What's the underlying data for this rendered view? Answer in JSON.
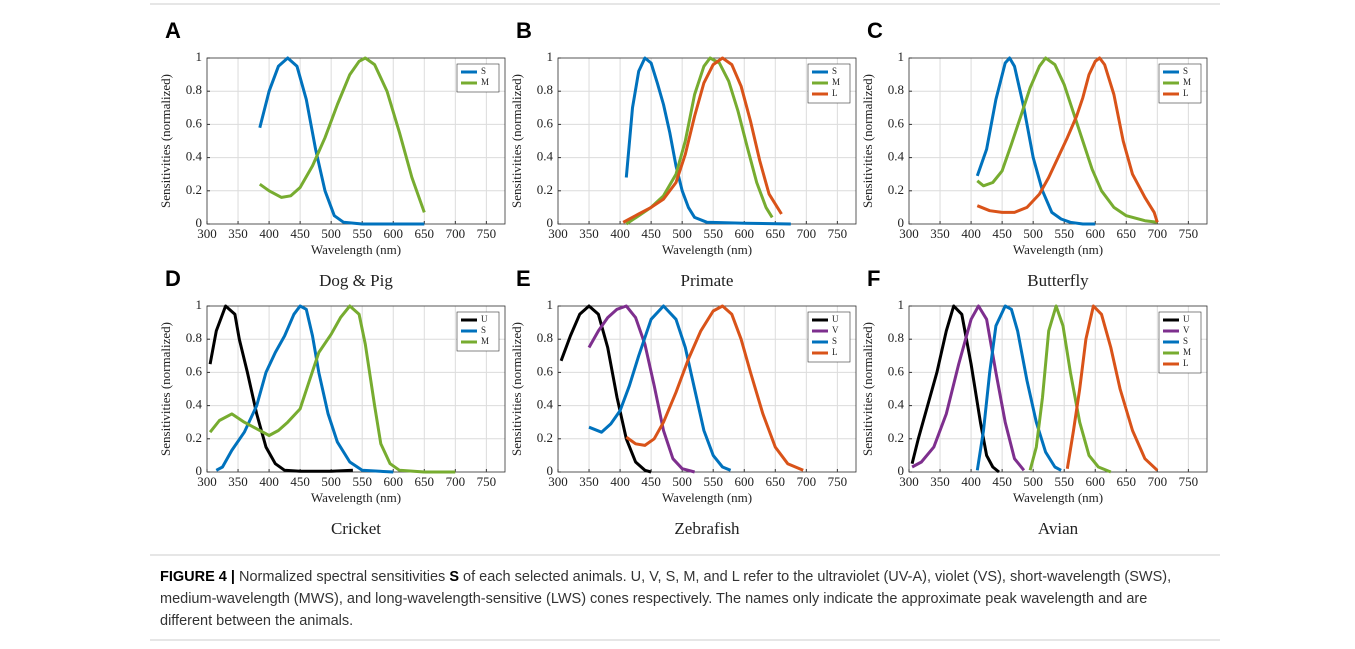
{
  "chart_data": [
    {
      "type": "line",
      "panel": "A",
      "title": "Dog & Pig",
      "xlabel": "Wavelength (nm)",
      "ylabel": "Sensitivities (normalized)",
      "xlim": [
        300,
        780
      ],
      "xticks": [
        300,
        350,
        400,
        450,
        500,
        550,
        600,
        650,
        700,
        750
      ],
      "ylim": [
        0,
        1
      ],
      "yticks": [
        0,
        0.2,
        0.4,
        0.6,
        0.8,
        1
      ],
      "grid": true,
      "legend": "upper right",
      "series": [
        {
          "name": "S",
          "color": "#0072bd",
          "x": [
            385,
            400,
            415,
            430,
            445,
            460,
            475,
            490,
            505,
            520,
            550,
            600,
            650
          ],
          "values": [
            0.58,
            0.8,
            0.95,
            1,
            0.95,
            0.75,
            0.45,
            0.2,
            0.05,
            0.01,
            0,
            0,
            0
          ]
        },
        {
          "name": "M",
          "color": "#77ac30",
          "x": [
            385,
            400,
            420,
            435,
            450,
            470,
            490,
            510,
            530,
            545,
            555,
            570,
            590,
            610,
            630,
            650
          ],
          "values": [
            0.24,
            0.2,
            0.16,
            0.17,
            0.22,
            0.35,
            0.52,
            0.72,
            0.9,
            0.98,
            1,
            0.96,
            0.8,
            0.55,
            0.28,
            0.07
          ]
        }
      ]
    },
    {
      "type": "line",
      "panel": "B",
      "title": "Primate",
      "xlabel": "Wavelength (nm)",
      "ylabel": "Sensitivities (normalized)",
      "xlim": [
        300,
        780
      ],
      "xticks": [
        300,
        350,
        400,
        450,
        500,
        550,
        600,
        650,
        700,
        750
      ],
      "ylim": [
        0,
        1
      ],
      "yticks": [
        0,
        0.2,
        0.4,
        0.6,
        0.8,
        1
      ],
      "grid": true,
      "legend": "upper right",
      "series": [
        {
          "name": "S",
          "color": "#0072bd",
          "x": [
            410,
            420,
            430,
            440,
            450,
            460,
            470,
            480,
            490,
            500,
            510,
            520,
            540,
            600,
            675
          ],
          "values": [
            0.28,
            0.7,
            0.92,
            1,
            0.97,
            0.85,
            0.72,
            0.55,
            0.35,
            0.2,
            0.1,
            0.04,
            0.01,
            0.005,
            0
          ]
        },
        {
          "name": "M",
          "color": "#77ac30",
          "x": [
            410,
            430,
            450,
            470,
            490,
            505,
            520,
            535,
            545,
            560,
            575,
            590,
            605,
            620,
            635,
            645
          ],
          "values": [
            0,
            0.05,
            0.1,
            0.17,
            0.3,
            0.5,
            0.78,
            0.95,
            1,
            0.97,
            0.86,
            0.68,
            0.46,
            0.25,
            0.1,
            0.04
          ]
        },
        {
          "name": "L",
          "color": "#d95319",
          "x": [
            405,
            430,
            450,
            470,
            490,
            505,
            520,
            535,
            550,
            565,
            580,
            595,
            610,
            625,
            640,
            660
          ],
          "values": [
            0.01,
            0.06,
            0.1,
            0.15,
            0.25,
            0.42,
            0.65,
            0.85,
            0.96,
            1,
            0.96,
            0.83,
            0.62,
            0.38,
            0.18,
            0.06
          ]
        }
      ]
    },
    {
      "type": "line",
      "panel": "C",
      "title": "Butterfly",
      "xlabel": "Wavelength (nm)",
      "ylabel": "Sensitivities (normalized)",
      "xlim": [
        300,
        780
      ],
      "xticks": [
        300,
        350,
        400,
        450,
        500,
        550,
        600,
        650,
        700,
        750
      ],
      "ylim": [
        0,
        1
      ],
      "yticks": [
        0,
        0.2,
        0.4,
        0.6,
        0.8,
        1
      ],
      "grid": true,
      "legend": "upper right",
      "series": [
        {
          "name": "S",
          "color": "#0072bd",
          "x": [
            410,
            425,
            440,
            455,
            462,
            470,
            485,
            500,
            515,
            530,
            545,
            560,
            580,
            600
          ],
          "values": [
            0.29,
            0.45,
            0.75,
            0.97,
            1,
            0.95,
            0.7,
            0.4,
            0.2,
            0.07,
            0.03,
            0.01,
            0,
            0
          ]
        },
        {
          "name": "M",
          "color": "#77ac30",
          "x": [
            410,
            420,
            435,
            450,
            465,
            480,
            495,
            510,
            520,
            535,
            550,
            565,
            580,
            595,
            610,
            630,
            650,
            680,
            700
          ],
          "values": [
            0.26,
            0.23,
            0.25,
            0.32,
            0.48,
            0.65,
            0.82,
            0.95,
            1,
            0.96,
            0.84,
            0.67,
            0.5,
            0.33,
            0.2,
            0.1,
            0.05,
            0.02,
            0.01
          ]
        },
        {
          "name": "L",
          "color": "#d95319",
          "x": [
            410,
            430,
            450,
            470,
            490,
            510,
            525,
            540,
            555,
            570,
            580,
            590,
            600,
            607,
            615,
            630,
            645,
            660,
            680,
            695,
            700
          ],
          "values": [
            0.11,
            0.08,
            0.07,
            0.07,
            0.1,
            0.18,
            0.28,
            0.4,
            0.52,
            0.65,
            0.76,
            0.9,
            0.98,
            1,
            0.96,
            0.78,
            0.5,
            0.3,
            0.16,
            0.07,
            0.01
          ]
        }
      ]
    },
    {
      "type": "line",
      "panel": "D",
      "title": "Cricket",
      "xlabel": "Wavelength (nm)",
      "ylabel": "Sensitivities (normalized)",
      "xlim": [
        300,
        780
      ],
      "xticks": [
        300,
        350,
        400,
        450,
        500,
        550,
        600,
        650,
        700,
        750
      ],
      "ylim": [
        0,
        1
      ],
      "yticks": [
        0,
        0.2,
        0.4,
        0.6,
        0.8,
        1
      ],
      "grid": true,
      "legend": "upper right",
      "series": [
        {
          "name": "U",
          "color": "#000000",
          "x": [
            305,
            315,
            330,
            345,
            352,
            365,
            380,
            395,
            410,
            425,
            450,
            500,
            535
          ],
          "values": [
            0.65,
            0.85,
            1,
            0.95,
            0.8,
            0.6,
            0.35,
            0.15,
            0.05,
            0.01,
            0.005,
            0.005,
            0.01
          ]
        },
        {
          "name": "S",
          "color": "#0072bd",
          "x": [
            315,
            325,
            340,
            360,
            380,
            395,
            410,
            425,
            440,
            450,
            460,
            470,
            480,
            495,
            510,
            530,
            550,
            600
          ],
          "values": [
            0.01,
            0.03,
            0.13,
            0.24,
            0.4,
            0.6,
            0.72,
            0.82,
            0.95,
            1,
            0.98,
            0.82,
            0.6,
            0.35,
            0.18,
            0.06,
            0.01,
            0
          ]
        },
        {
          "name": "M",
          "color": "#77ac30",
          "x": [
            305,
            320,
            340,
            360,
            380,
            400,
            415,
            430,
            450,
            465,
            480,
            500,
            515,
            530,
            545,
            555,
            570,
            580,
            595,
            610,
            650,
            700
          ],
          "values": [
            0.24,
            0.31,
            0.35,
            0.3,
            0.26,
            0.22,
            0.25,
            0.3,
            0.38,
            0.55,
            0.72,
            0.83,
            0.93,
            1,
            0.95,
            0.77,
            0.4,
            0.17,
            0.05,
            0.01,
            0,
            0
          ]
        }
      ]
    },
    {
      "type": "line",
      "panel": "E",
      "title": "Zebrafish",
      "xlabel": "Wavelength (nm)",
      "ylabel": "Sensitivities (normalized)",
      "xlim": [
        300,
        780
      ],
      "xticks": [
        300,
        350,
        400,
        450,
        500,
        550,
        600,
        650,
        700,
        750
      ],
      "ylim": [
        0,
        1
      ],
      "yticks": [
        0,
        0.2,
        0.4,
        0.6,
        0.8,
        1
      ],
      "grid": true,
      "legend": "upper right",
      "series": [
        {
          "name": "U",
          "color": "#000000",
          "x": [
            305,
            320,
            335,
            350,
            365,
            380,
            395,
            410,
            425,
            440,
            450
          ],
          "values": [
            0.67,
            0.82,
            0.95,
            1,
            0.95,
            0.75,
            0.45,
            0.2,
            0.06,
            0.01,
            0
          ]
        },
        {
          "name": "V",
          "color": "#7e2f8e",
          "x": [
            350,
            365,
            380,
            395,
            410,
            425,
            440,
            455,
            470,
            485,
            500,
            520
          ],
          "values": [
            0.75,
            0.85,
            0.93,
            0.98,
            1,
            0.93,
            0.77,
            0.52,
            0.25,
            0.08,
            0.02,
            0
          ]
        },
        {
          "name": "S",
          "color": "#0072bd",
          "x": [
            350,
            370,
            385,
            400,
            415,
            430,
            450,
            470,
            490,
            505,
            520,
            535,
            550,
            565,
            578
          ],
          "values": [
            0.27,
            0.24,
            0.29,
            0.37,
            0.52,
            0.7,
            0.92,
            1,
            0.92,
            0.75,
            0.5,
            0.25,
            0.1,
            0.03,
            0.01
          ]
        },
        {
          "name": "L",
          "color": "#d95319",
          "x": [
            410,
            425,
            440,
            455,
            470,
            490,
            510,
            530,
            550,
            565,
            580,
            595,
            610,
            630,
            650,
            670,
            695
          ],
          "values": [
            0.21,
            0.17,
            0.16,
            0.2,
            0.3,
            0.48,
            0.68,
            0.85,
            0.97,
            1,
            0.95,
            0.8,
            0.6,
            0.35,
            0.15,
            0.05,
            0.01
          ]
        }
      ]
    },
    {
      "type": "line",
      "panel": "F",
      "title": "Avian",
      "xlabel": "Wavelength (nm)",
      "ylabel": "Sensitivities (normalized)",
      "xlim": [
        300,
        780
      ],
      "xticks": [
        300,
        350,
        400,
        450,
        500,
        550,
        600,
        650,
        700,
        750
      ],
      "ylim": [
        0,
        1
      ],
      "yticks": [
        0,
        0.2,
        0.4,
        0.6,
        0.8,
        1
      ],
      "grid": true,
      "legend": "upper right",
      "series": [
        {
          "name": "U",
          "color": "#000000",
          "x": [
            305,
            315,
            330,
            345,
            360,
            372,
            385,
            400,
            415,
            425,
            435,
            445
          ],
          "values": [
            0.05,
            0.2,
            0.4,
            0.6,
            0.85,
            1,
            0.95,
            0.65,
            0.3,
            0.1,
            0.03,
            0
          ]
        },
        {
          "name": "V",
          "color": "#7e2f8e",
          "x": [
            305,
            320,
            340,
            360,
            380,
            400,
            412,
            425,
            440,
            455,
            470,
            485
          ],
          "values": [
            0.03,
            0.06,
            0.15,
            0.35,
            0.65,
            0.92,
            1,
            0.92,
            0.6,
            0.3,
            0.08,
            0.01
          ]
        },
        {
          "name": "S",
          "color": "#0072bd",
          "x": [
            410,
            420,
            430,
            440,
            455,
            465,
            475,
            490,
            505,
            520,
            535,
            545
          ],
          "values": [
            0.01,
            0.25,
            0.6,
            0.88,
            1,
            0.98,
            0.85,
            0.55,
            0.3,
            0.12,
            0.03,
            0.01
          ]
        },
        {
          "name": "M",
          "color": "#77ac30",
          "x": [
            495,
            505,
            515,
            525,
            537,
            548,
            560,
            575,
            590,
            605,
            625
          ],
          "values": [
            0.01,
            0.15,
            0.45,
            0.85,
            1,
            0.88,
            0.6,
            0.3,
            0.1,
            0.03,
            0
          ]
        },
        {
          "name": "L",
          "color": "#d95319",
          "x": [
            555,
            565,
            575,
            585,
            597,
            610,
            625,
            640,
            660,
            680,
            700
          ],
          "values": [
            0.02,
            0.25,
            0.5,
            0.8,
            1,
            0.95,
            0.75,
            0.5,
            0.25,
            0.08,
            0.01
          ]
        }
      ]
    }
  ],
  "caption": {
    "label": "FIGURE 4 |",
    "parts": [
      "Normalized spectral sensitivities",
      "S",
      "of each selected animals. U, V, S, M, and L refer to the ultraviolet (UV-A), violet (VS), short-wavelength (SWS), medium-wavelength (MWS), and long-wavelength-sensitive (LWS) cones respectively. The names only indicate the approximate peak wavelength and are different between the animals."
    ]
  }
}
